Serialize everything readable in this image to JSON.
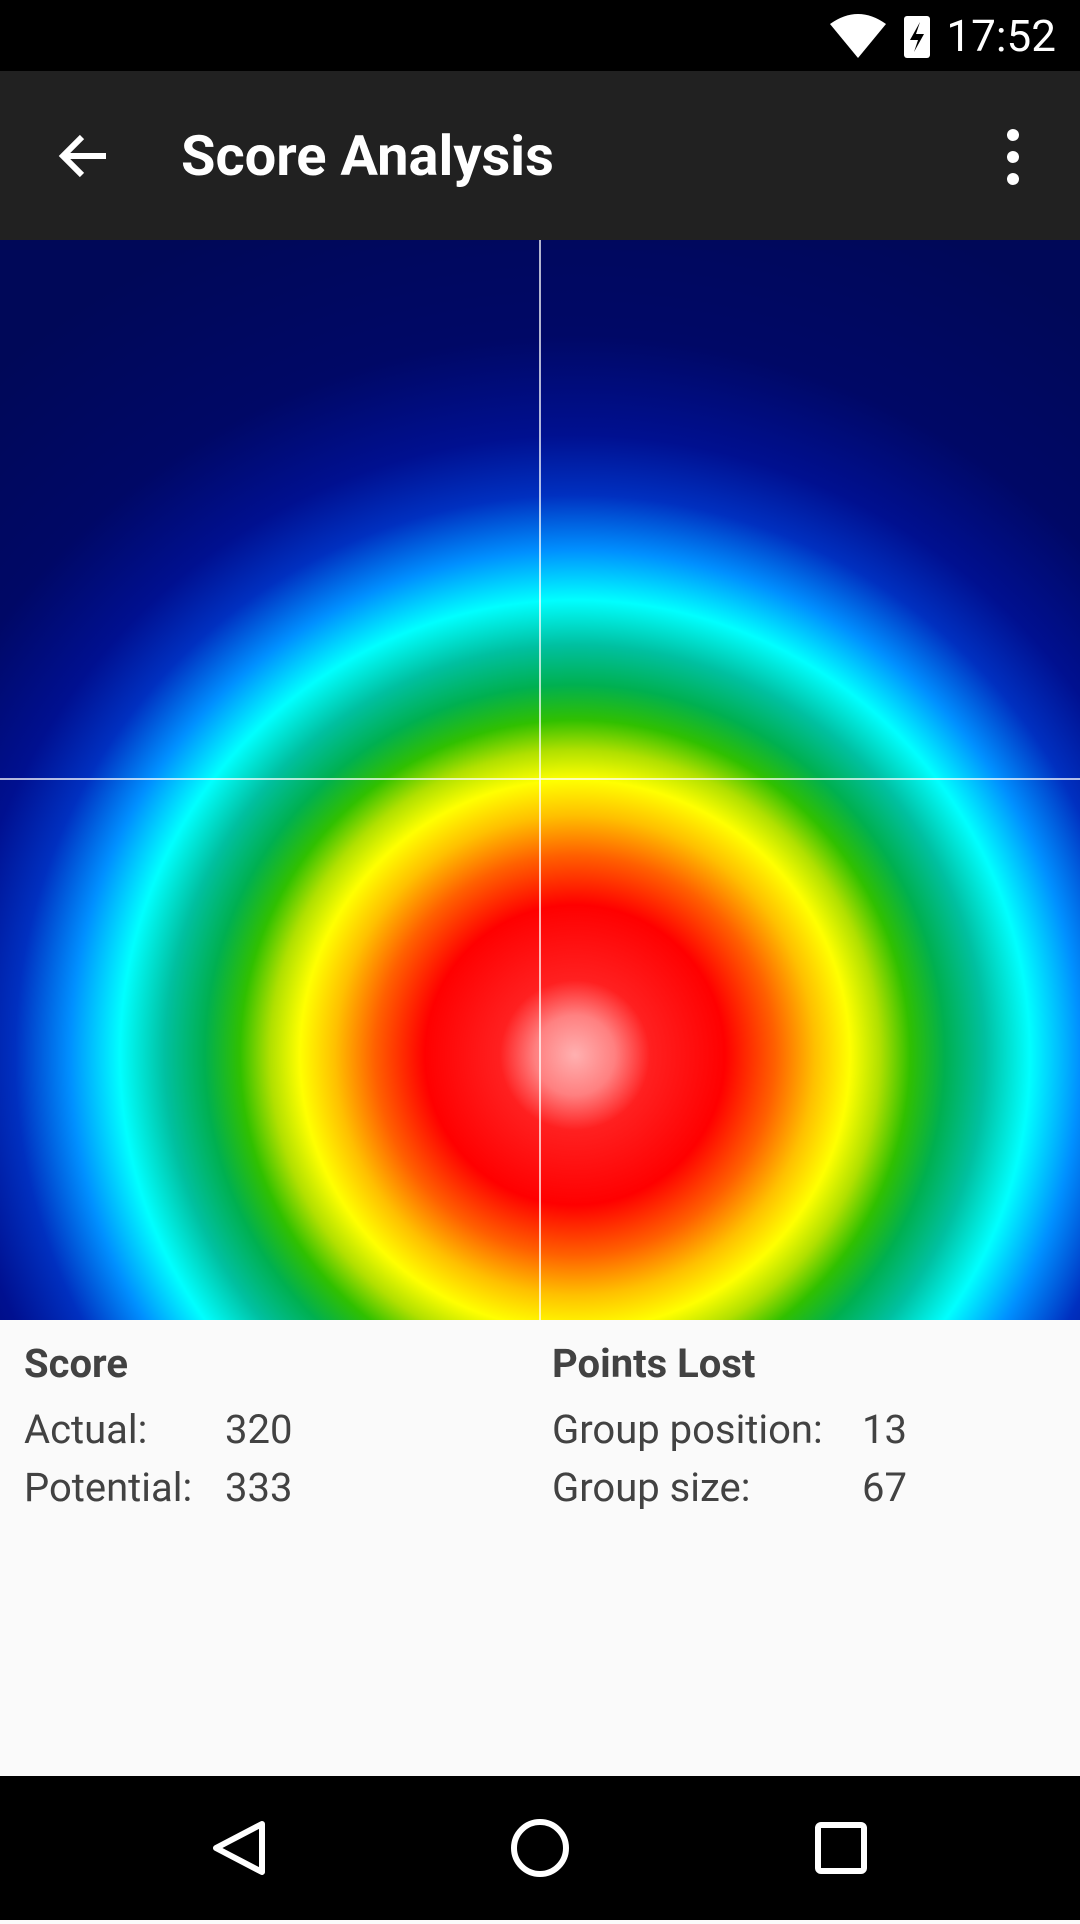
{
  "status_bar": {
    "time": "17:52"
  },
  "app_bar": {
    "title": "Score Analysis"
  },
  "score": {
    "title": "Score",
    "rows": [
      [
        "Actual:",
        320
      ],
      [
        "Potential:",
        333
      ]
    ]
  },
  "points_lost": {
    "title": "Points Lost",
    "rows": [
      [
        "Group position:",
        13
      ],
      [
        "Group size:",
        67
      ]
    ]
  }
}
